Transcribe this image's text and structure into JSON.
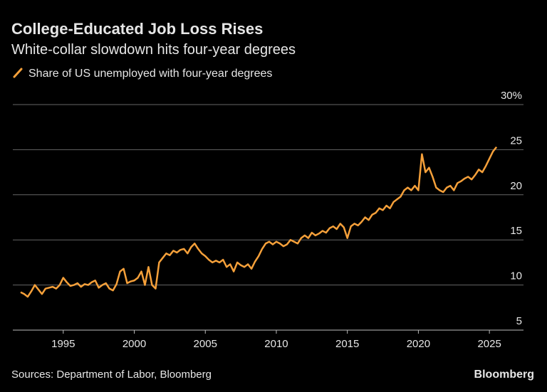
{
  "chart_data": {
    "type": "line",
    "title": "College-Educated Job Loss Rises",
    "subtitle": "White-collar slowdown hits four-year degrees",
    "source": "Sources: Department of Labor, Bloomberg",
    "credit": "Bloomberg",
    "x": [
      1992,
      1992.25,
      1992.5,
      1992.75,
      1993,
      1993.25,
      1993.5,
      1993.75,
      1994,
      1994.25,
      1994.5,
      1994.75,
      1995,
      1995.25,
      1995.5,
      1995.75,
      1996,
      1996.25,
      1996.5,
      1996.75,
      1997,
      1997.25,
      1997.5,
      1997.75,
      1998,
      1998.25,
      1998.5,
      1998.75,
      1999,
      1999.25,
      1999.5,
      1999.75,
      2000,
      2000.25,
      2000.5,
      2000.75,
      2001,
      2001.25,
      2001.5,
      2001.75,
      2002,
      2002.25,
      2002.5,
      2002.75,
      2003,
      2003.25,
      2003.5,
      2003.75,
      2004,
      2004.25,
      2004.5,
      2004.75,
      2005,
      2005.25,
      2005.5,
      2005.75,
      2006,
      2006.25,
      2006.5,
      2006.75,
      2007,
      2007.25,
      2007.5,
      2007.75,
      2008,
      2008.25,
      2008.5,
      2008.75,
      2009,
      2009.25,
      2009.5,
      2009.75,
      2010,
      2010.25,
      2010.5,
      2010.75,
      2011,
      2011.25,
      2011.5,
      2011.75,
      2012,
      2012.25,
      2012.5,
      2012.75,
      2013,
      2013.25,
      2013.5,
      2013.75,
      2014,
      2014.25,
      2014.5,
      2014.75,
      2015,
      2015.25,
      2015.5,
      2015.75,
      2016,
      2016.25,
      2016.5,
      2016.75,
      2017,
      2017.25,
      2017.5,
      2017.75,
      2018,
      2018.25,
      2018.5,
      2018.75,
      2019,
      2019.25,
      2019.5,
      2019.75,
      2020,
      2020.25,
      2020.5,
      2020.75,
      2021,
      2021.25,
      2021.5,
      2021.75,
      2022,
      2022.25,
      2022.5,
      2022.75,
      2023,
      2023.25,
      2023.5,
      2023.75,
      2024,
      2024.25,
      2024.5,
      2024.75,
      2025,
      2025.25,
      2025.5
    ],
    "series": [
      {
        "name": "Share of US unemployed with four-year degrees",
        "color": "#f5a03a",
        "values": [
          9.2,
          9.0,
          8.7,
          9.3,
          10.0,
          9.5,
          9.0,
          9.6,
          9.7,
          9.8,
          9.6,
          10.0,
          10.8,
          10.3,
          9.9,
          10.0,
          10.2,
          9.8,
          10.1,
          10.0,
          10.3,
          10.5,
          9.7,
          10.0,
          10.2,
          9.6,
          9.4,
          10.1,
          11.5,
          11.8,
          10.2,
          10.4,
          10.5,
          10.8,
          11.5,
          10.0,
          12.0,
          10.0,
          9.6,
          12.5,
          13.0,
          13.5,
          13.3,
          13.8,
          13.6,
          13.9,
          14.0,
          13.5,
          14.2,
          14.6,
          14.0,
          13.5,
          13.2,
          12.8,
          12.5,
          12.7,
          12.5,
          12.8,
          12.0,
          12.3,
          11.5,
          12.5,
          12.2,
          12.0,
          12.3,
          11.8,
          12.6,
          13.2,
          14.0,
          14.6,
          14.8,
          14.5,
          14.8,
          14.6,
          14.3,
          14.5,
          15.0,
          14.8,
          14.6,
          15.2,
          15.5,
          15.2,
          15.8,
          15.5,
          15.7,
          16.0,
          15.8,
          16.3,
          16.5,
          16.2,
          16.8,
          16.4,
          15.2,
          16.5,
          16.8,
          16.6,
          17.0,
          17.5,
          17.2,
          17.8,
          18.0,
          18.5,
          18.3,
          18.8,
          18.5,
          19.2,
          19.5,
          19.8,
          20.5,
          20.8,
          20.5,
          21.0,
          20.5,
          24.5,
          22.5,
          23.0,
          22.0,
          20.8,
          20.5,
          20.3,
          20.8,
          21.0,
          20.5,
          21.3,
          21.5,
          21.8,
          22.0,
          21.7,
          22.2,
          22.8,
          22.5,
          23.2,
          24.0,
          24.8,
          25.3
        ]
      }
    ],
    "xlim": [
      1991.45,
      2027.4
    ],
    "ylim": [
      5,
      30
    ],
    "xticks": [
      1995,
      2000,
      2005,
      2010,
      2015,
      2020,
      2025
    ],
    "yticks": [
      5,
      10,
      15,
      20,
      25,
      {
        "value": 30,
        "label": "30%"
      }
    ],
    "grid": true
  }
}
